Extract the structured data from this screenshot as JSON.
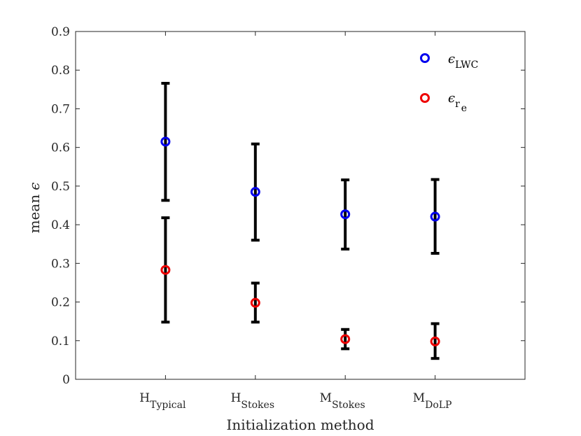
{
  "chart_data": {
    "type": "scatter",
    "title": "",
    "xlabel": "Initialization method",
    "ylabel": {
      "main": "mean",
      "symbol": "ϵ"
    },
    "ylim": [
      0,
      0.9
    ],
    "yticks": [
      "0",
      "0.1",
      "0.2",
      "0.3",
      "0.4",
      "0.5",
      "0.6",
      "0.7",
      "0.8",
      "0.9"
    ],
    "categories": [
      {
        "main": "H",
        "sub": "Typical"
      },
      {
        "main": "H",
        "sub": "Stokes"
      },
      {
        "main": "M",
        "sub": "Stokes"
      },
      {
        "main": "M",
        "sub": "DoLP"
      }
    ],
    "legend_position": "top-right",
    "series": [
      {
        "name": "ϵ_LWC",
        "legend": {
          "symbol": "ϵ",
          "sub": "LWC"
        },
        "color": "#0000ee",
        "values": [
          0.615,
          0.485,
          0.427,
          0.421
        ],
        "err_low": [
          0.463,
          0.36,
          0.337,
          0.326
        ],
        "err_high": [
          0.766,
          0.609,
          0.516,
          0.517
        ]
      },
      {
        "name": "ϵ_r_e",
        "legend": {
          "symbol": "ϵ",
          "sub": "r",
          "subsub": "e"
        },
        "color": "#ee0000",
        "values": [
          0.283,
          0.198,
          0.104,
          0.098
        ],
        "err_low": [
          0.148,
          0.148,
          0.079,
          0.054
        ],
        "err_high": [
          0.418,
          0.249,
          0.129,
          0.144
        ]
      }
    ]
  }
}
